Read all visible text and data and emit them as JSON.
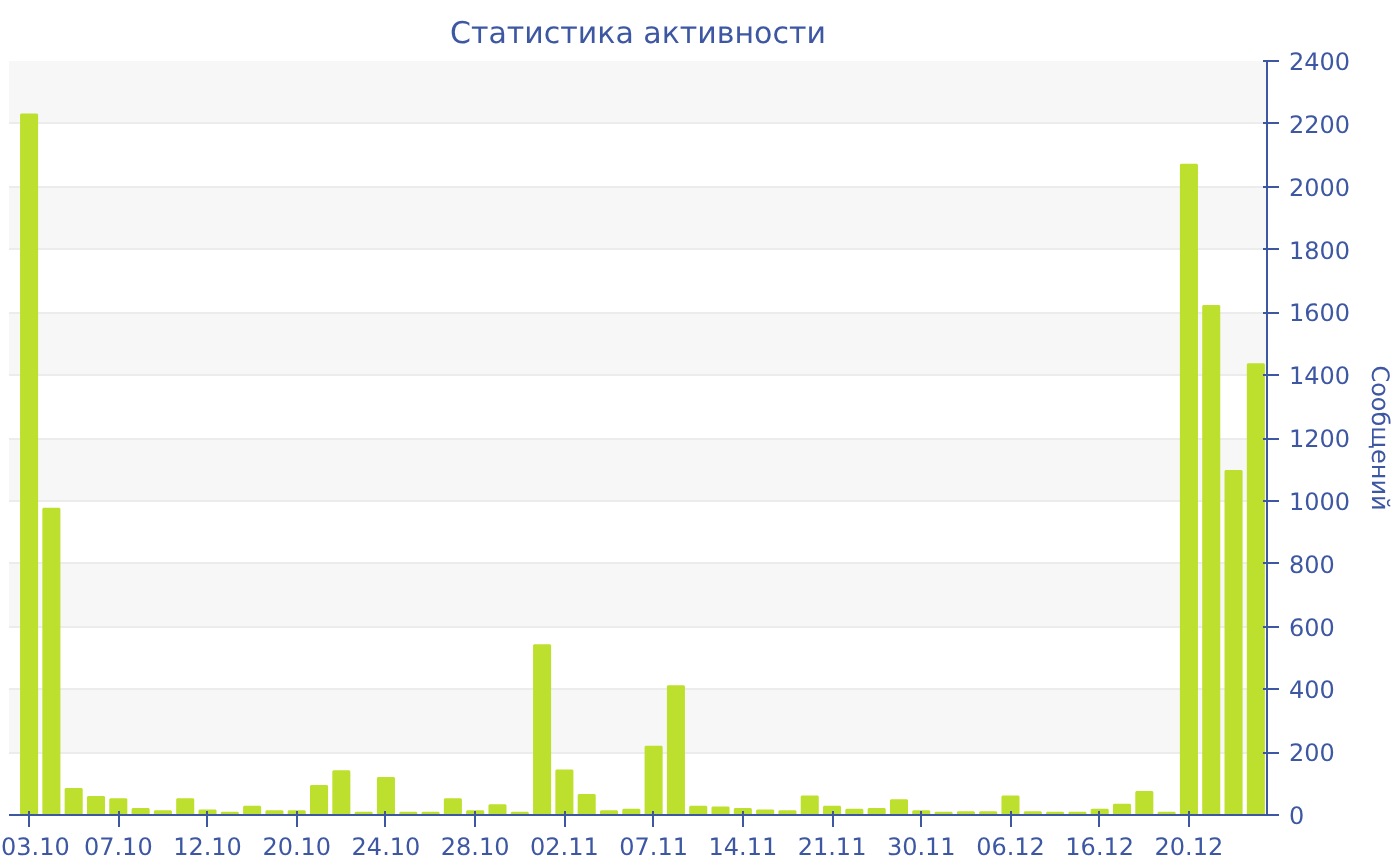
{
  "chart_data": {
    "type": "bar",
    "title": "Статистика активности",
    "ylabel": "Сообщений",
    "categories": [
      "03.10",
      null,
      null,
      null,
      "07.10",
      null,
      null,
      null,
      "12.10",
      null,
      null,
      null,
      "20.10",
      null,
      null,
      null,
      "24.10",
      null,
      null,
      null,
      "28.10",
      null,
      null,
      null,
      "02.11",
      null,
      null,
      null,
      "07.11",
      null,
      null,
      null,
      "14.11",
      null,
      null,
      null,
      "21.11",
      null,
      null,
      null,
      "30.11",
      null,
      null,
      null,
      "06.12",
      null,
      null,
      null,
      "16.12",
      null,
      null,
      null,
      "20.12",
      null,
      null,
      null
    ],
    "values": [
      2230,
      975,
      83,
      57,
      50,
      19,
      12,
      50,
      14,
      7,
      26,
      12,
      12,
      92,
      139,
      7,
      118,
      7,
      7,
      50,
      12,
      31,
      7,
      540,
      142,
      64,
      12,
      17,
      217,
      410,
      26,
      24,
      19,
      14,
      12,
      59,
      26,
      17,
      19,
      47,
      12,
      7,
      9,
      9,
      59,
      9,
      7,
      7,
      17,
      33,
      73,
      7,
      2070,
      1620,
      1095,
      1435
    ],
    "color": "#bde02e",
    "ylim": [
      0,
      2400
    ],
    "yticks": [
      0,
      200,
      400,
      600,
      800,
      1000,
      1200,
      1400,
      1600,
      1800,
      2000,
      2200,
      2400
    ],
    "grid": "y"
  }
}
